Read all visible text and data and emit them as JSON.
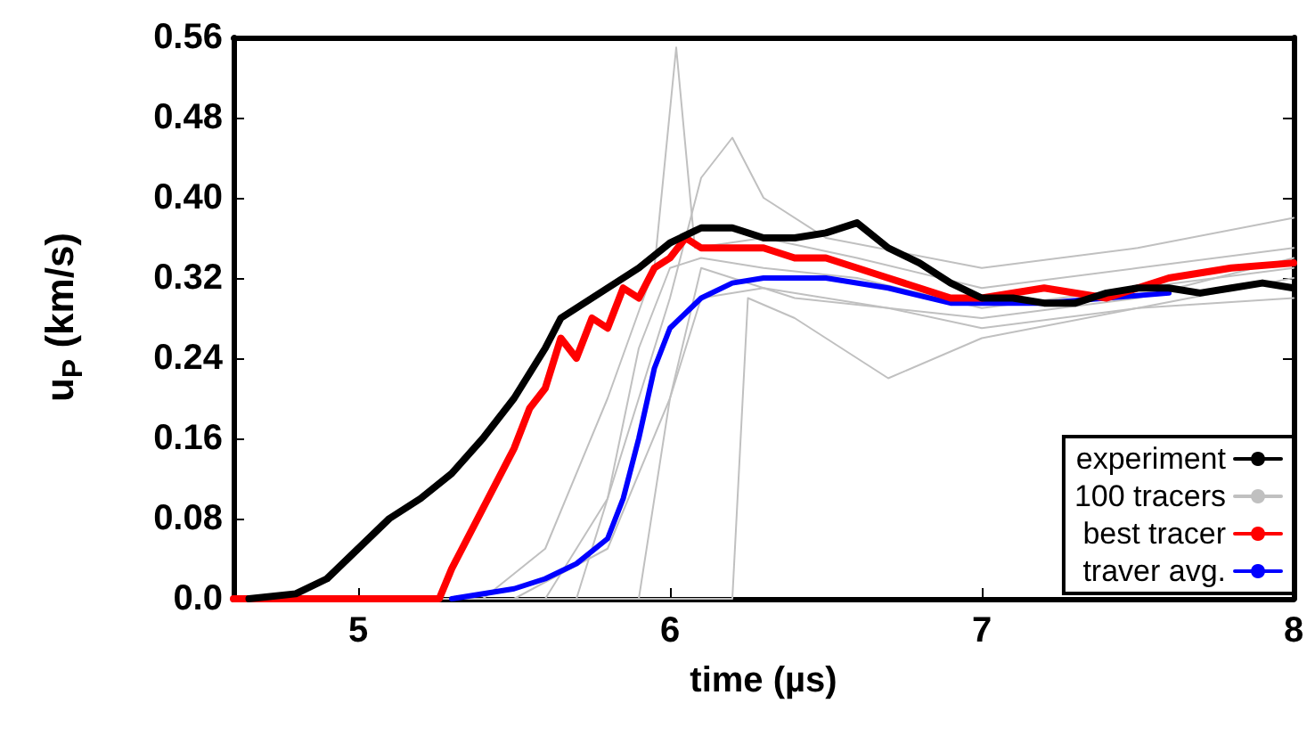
{
  "chart_data": {
    "type": "line",
    "xlabel": "time (µs)",
    "ylabel": "u$_{P}$ (km/s)",
    "xlim": [
      4.6,
      8
    ],
    "xticks": [
      5,
      6,
      7,
      8
    ],
    "ylim": [
      0,
      0.56
    ],
    "yticks": [
      {
        "value": 0,
        "label": "0.0"
      },
      0.08,
      0.16,
      0.24,
      0.32,
      {
        "value": 0.4,
        "label": "0.40"
      },
      0.48,
      0.56
    ],
    "legend": "bottom right",
    "grid": false,
    "marker": "none",
    "line_style": "solid",
    "series": [
      {
        "name": "experiment",
        "color": "#000000",
        "x": [
          4.65,
          4.8,
          4.9,
          5.0,
          5.1,
          5.2,
          5.3,
          5.4,
          5.5,
          5.6,
          5.65,
          5.7,
          5.8,
          5.9,
          6.0,
          6.1,
          6.2,
          6.3,
          6.4,
          6.5,
          6.6,
          6.7,
          6.8,
          6.9,
          7.0,
          7.1,
          7.2,
          7.3,
          7.4,
          7.5,
          7.6,
          7.7,
          7.8,
          7.9,
          8.0
        ],
        "values": [
          0,
          0.005,
          0.02,
          0.05,
          0.08,
          0.1,
          0.125,
          0.16,
          0.2,
          0.25,
          0.28,
          0.29,
          0.31,
          0.33,
          0.355,
          0.37,
          0.37,
          0.36,
          0.36,
          0.365,
          0.375,
          0.35,
          0.335,
          0.315,
          0.3,
          0.3,
          0.295,
          0.295,
          0.305,
          0.31,
          0.31,
          0.305,
          0.31,
          0.315,
          0.31
        ]
      },
      {
        "name": "100 tracers",
        "color": "#c0c0c0",
        "x": [
          4.6,
          5.6,
          5.8,
          5.9,
          6.0,
          6.1,
          6.3,
          6.6,
          7.0,
          7.5,
          8.0
        ],
        "values": [
          0,
          0,
          0.1,
          0.25,
          0.33,
          0.34,
          0.33,
          0.32,
          0.29,
          0.31,
          0.33
        ]
      },
      {
        "name": "best tracer",
        "color": "#ff0000",
        "x": [
          4.6,
          5.26,
          5.3,
          5.4,
          5.5,
          5.55,
          5.6,
          5.65,
          5.7,
          5.75,
          5.8,
          5.85,
          5.9,
          5.95,
          6.0,
          6.05,
          6.1,
          6.2,
          6.3,
          6.4,
          6.5,
          6.6,
          6.7,
          6.8,
          6.9,
          7.0,
          7.2,
          7.4,
          7.5,
          7.6,
          7.8,
          8.0
        ],
        "values": [
          0,
          0,
          0.03,
          0.09,
          0.15,
          0.19,
          0.21,
          0.26,
          0.24,
          0.28,
          0.27,
          0.31,
          0.3,
          0.33,
          0.34,
          0.36,
          0.35,
          0.35,
          0.35,
          0.34,
          0.34,
          0.33,
          0.32,
          0.31,
          0.3,
          0.3,
          0.31,
          0.3,
          0.31,
          0.32,
          0.33,
          0.335
        ]
      },
      {
        "name": "traver avg.",
        "color": "#0000ff",
        "x": [
          5.3,
          5.5,
          5.6,
          5.7,
          5.8,
          5.85,
          5.9,
          5.95,
          6.0,
          6.1,
          6.2,
          6.3,
          6.5,
          6.7,
          6.9,
          7.0,
          7.2,
          7.4,
          7.6
        ],
        "values": [
          0,
          0.01,
          0.02,
          0.035,
          0.06,
          0.1,
          0.16,
          0.23,
          0.27,
          0.3,
          0.315,
          0.32,
          0.32,
          0.31,
          0.295,
          0.295,
          0.295,
          0.3,
          0.305
        ]
      },
      {
        "color": "#c0c0c0",
        "x": [
          4.6,
          5.4,
          5.6,
          5.8,
          5.95,
          6.02,
          6.08,
          6.3,
          6.6,
          7.0,
          7.5,
          8.0
        ],
        "values": [
          0,
          0,
          0.05,
          0.2,
          0.33,
          0.55,
          0.35,
          0.36,
          0.34,
          0.31,
          0.33,
          0.35
        ]
      },
      {
        "color": "#c0c0c0",
        "x": [
          4.6,
          5.9,
          6.0,
          6.1,
          6.3,
          6.7,
          7.0,
          7.5,
          8.0
        ],
        "values": [
          0,
          0,
          0.2,
          0.3,
          0.31,
          0.29,
          0.27,
          0.29,
          0.32
        ]
      },
      {
        "color": "#c0c0c0",
        "x": [
          4.6,
          6.2,
          6.25,
          6.4,
          6.7,
          7.0,
          7.5,
          8.0
        ],
        "values": [
          0,
          0,
          0.3,
          0.28,
          0.22,
          0.26,
          0.29,
          0.3
        ]
      },
      {
        "color": "#c0c0c0",
        "x": [
          4.6,
          5.7,
          5.9,
          6.0,
          6.1,
          6.2,
          6.3,
          6.5,
          7.0,
          7.5,
          8.0
        ],
        "values": [
          0,
          0,
          0.2,
          0.3,
          0.42,
          0.46,
          0.4,
          0.36,
          0.33,
          0.35,
          0.38
        ]
      },
      {
        "color": "#c0c0c0",
        "x": [
          4.6,
          5.5,
          5.8,
          6.0,
          6.1,
          6.4,
          7.0,
          7.5,
          8.0
        ],
        "values": [
          0,
          0,
          0.05,
          0.2,
          0.33,
          0.3,
          0.28,
          0.3,
          0.34
        ]
      }
    ]
  }
}
